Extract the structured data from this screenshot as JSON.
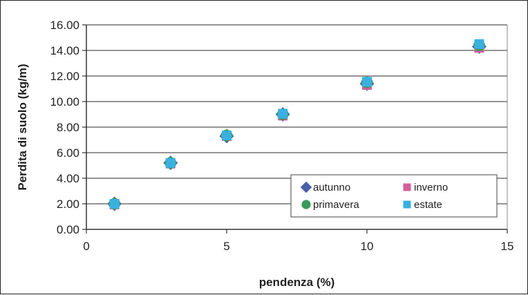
{
  "chart_data": {
    "type": "scatter",
    "title": "",
    "xlabel": "pendenza (%)",
    "ylabel": "Perdita di suolo (kg/m)",
    "xlim": [
      0,
      15
    ],
    "ylim": [
      0,
      16
    ],
    "xticks": [
      0,
      5,
      10,
      15
    ],
    "xtick_labels": [
      "0",
      "5",
      "10",
      "15"
    ],
    "yticks": [
      0,
      2,
      4,
      6,
      8,
      10,
      12,
      14,
      16
    ],
    "ytick_labels": [
      "0.00",
      "2.00",
      "4.00",
      "6.00",
      "8.00",
      "10.00",
      "12.00",
      "14.00",
      "16.00"
    ],
    "grid": "horizontal",
    "legend_position": "bottom-right",
    "series": [
      {
        "name": "autunno",
        "marker": "diamond",
        "color": "#4a5fa8",
        "x": [
          1,
          3,
          5,
          7,
          10,
          14
        ],
        "y": [
          2.0,
          5.2,
          7.3,
          9.0,
          11.4,
          14.3
        ]
      },
      {
        "name": "inverno",
        "marker": "square",
        "color": "#d4609a",
        "x": [
          1,
          3,
          5,
          7,
          10,
          14
        ],
        "y": [
          1.95,
          5.15,
          7.3,
          8.9,
          11.3,
          14.2
        ]
      },
      {
        "name": "primavera",
        "marker": "circle",
        "color": "#3a9a5c",
        "x": [
          1,
          3,
          5,
          7,
          10,
          14
        ],
        "y": [
          2.0,
          5.2,
          7.35,
          9.0,
          11.5,
          14.4
        ]
      },
      {
        "name": "estate",
        "marker": "square",
        "color": "#3ab0e0",
        "x": [
          1,
          3,
          5,
          7,
          10,
          14
        ],
        "y": [
          2.0,
          5.2,
          7.35,
          9.05,
          11.55,
          14.5
        ]
      }
    ]
  }
}
